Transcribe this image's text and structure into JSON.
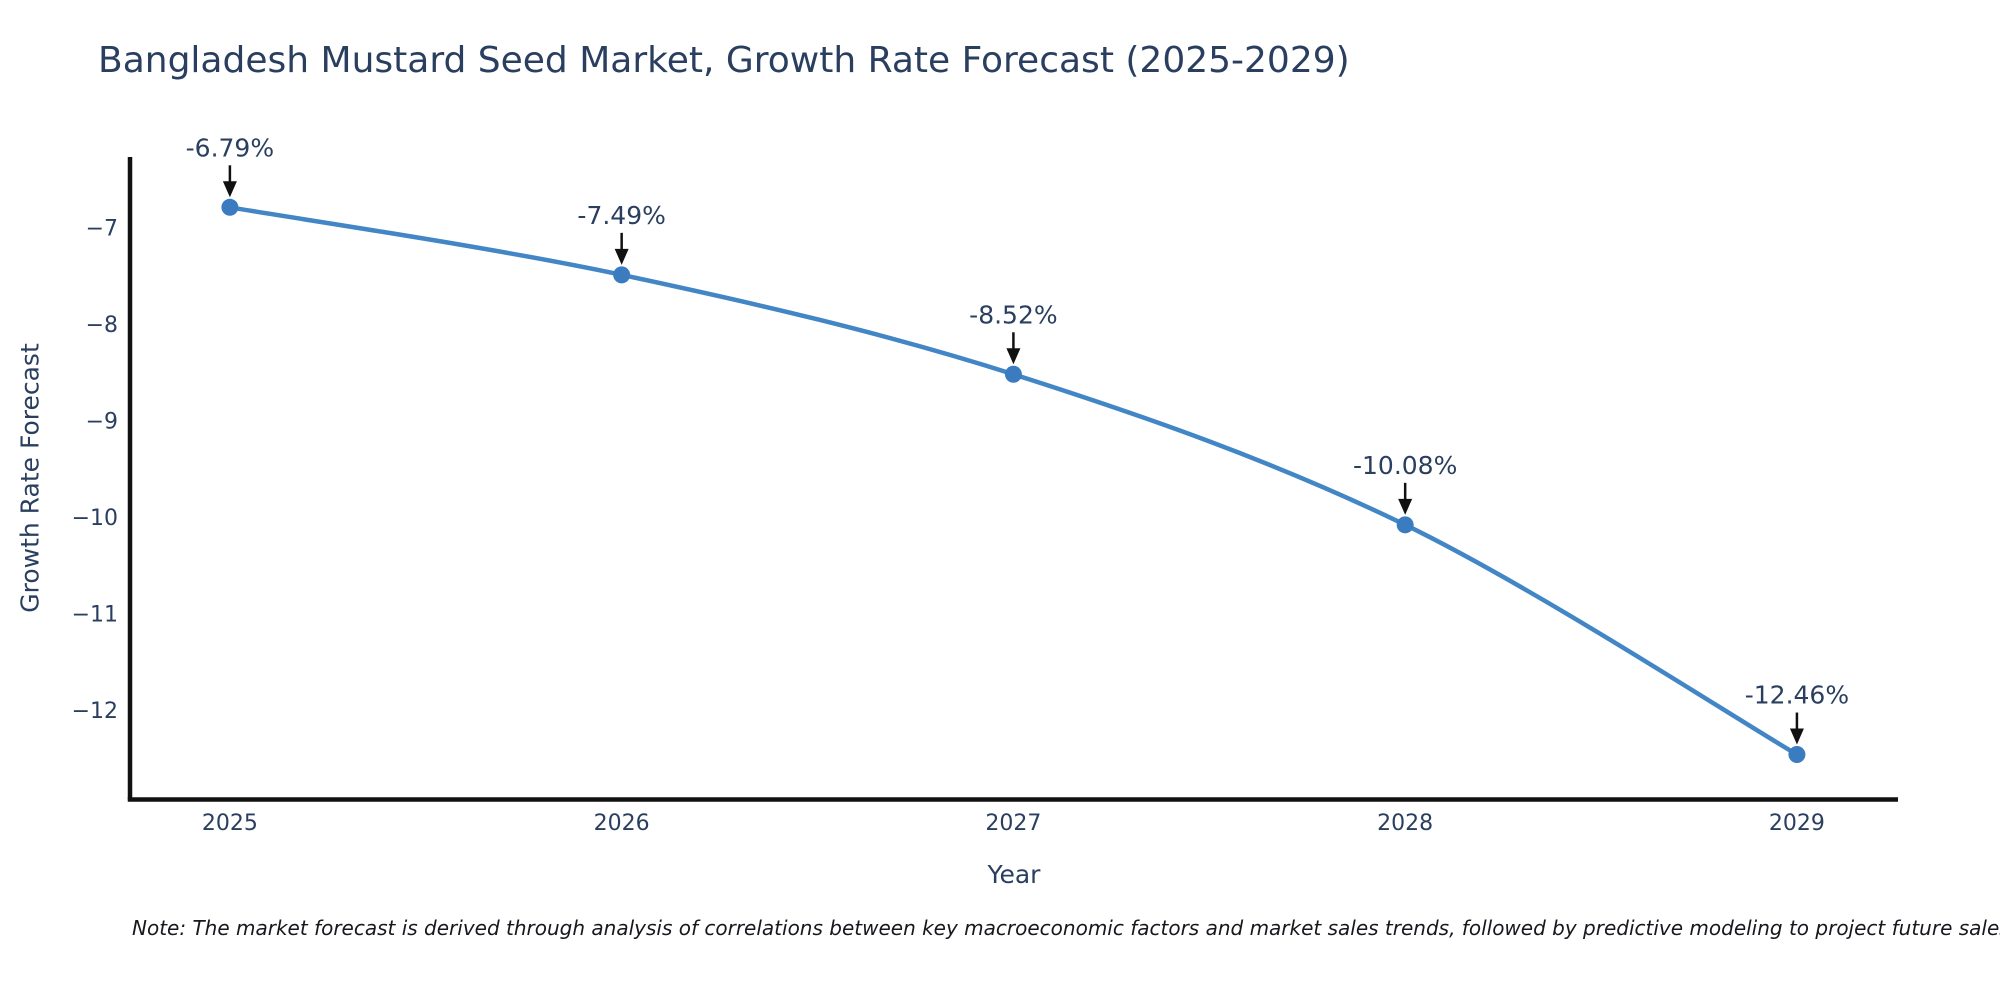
{
  "title": "Bangladesh Mustard Seed Market, Growth Rate Forecast (2025-2029)",
  "note": "Note: The market forecast is derived through analysis of correlations between key macroeconomic factors and market sales trends, followed by predictive modeling to project future sales",
  "chart_data": {
    "type": "line",
    "title": "Bangladesh Mustard Seed Market, Growth Rate Forecast (2025-2029)",
    "xlabel": "Year",
    "ylabel": "Growth Rate Forecast",
    "x": [
      2025,
      2026,
      2027,
      2028,
      2029
    ],
    "y": [
      -6.79,
      -7.49,
      -8.52,
      -10.08,
      -12.46
    ],
    "point_labels": [
      "-6.79%",
      "-7.49%",
      "-8.52%",
      "-10.08%",
      "-12.46%"
    ],
    "xtick_labels": [
      "2025",
      "2026",
      "2027",
      "2028",
      "2029"
    ],
    "ytick_values": [
      -7,
      -8,
      -9,
      -10,
      -11,
      -12
    ],
    "ytick_labels": [
      "−7",
      "−8",
      "−9",
      "−10",
      "−11",
      "−12"
    ],
    "xlim": [
      2024.745,
      2029.258
    ],
    "ylim": [
      -12.9,
      -6.3
    ],
    "line_shape": "spline",
    "grid": "off",
    "legend": "off",
    "colors": {
      "line": "#4286c5",
      "marker": "#3a7cbf",
      "axis_line": "#111111",
      "text": "#2a3f5f",
      "annotation_text": "#2a3f5f",
      "annotation_arrow": "#111111",
      "note_text": "#16181d",
      "background": "#ffffff"
    }
  }
}
